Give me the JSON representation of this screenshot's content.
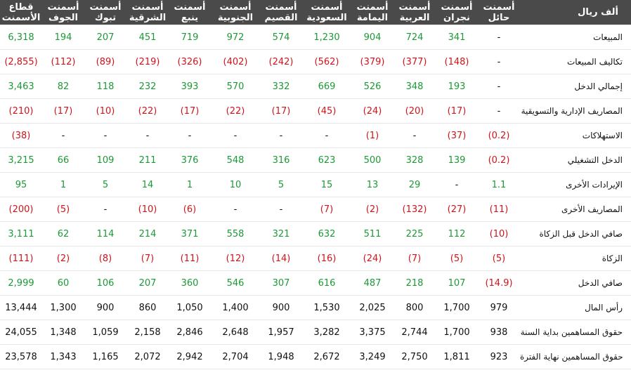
{
  "table": {
    "corner_label": "ألف ريال",
    "columns": [
      "قطاع\nالأسمنت",
      "أسمنت\nالجوف",
      "أسمنت\nتبوك",
      "أسمنت\nالشرقية",
      "أسمنت\nينبع",
      "أسمنت\nالجنوبية",
      "أسمنت\nالقصيم",
      "أسمنت\nالسعودية",
      "أسمنت\nاليمامة",
      "أسمنت\nالعربية",
      "أسمنت\nنجران",
      "أسمنت\nحائل"
    ],
    "rows": [
      {
        "label": "المبيعات",
        "values": [
          "6,318",
          "194",
          "207",
          "451",
          "719",
          "972",
          "574",
          "1,230",
          "904",
          "724",
          "341",
          "-"
        ],
        "tone": [
          "pos",
          "pos",
          "pos",
          "pos",
          "pos",
          "pos",
          "pos",
          "pos",
          "pos",
          "pos",
          "pos",
          "neu"
        ]
      },
      {
        "label": "تكاليف المبيعات",
        "values": [
          "(2,855)",
          "(112)",
          "(89)",
          "(219)",
          "(326)",
          "(402)",
          "(242)",
          "(562)",
          "(379)",
          "(377)",
          "(148)",
          "-"
        ],
        "tone": [
          "neg",
          "neg",
          "neg",
          "neg",
          "neg",
          "neg",
          "neg",
          "neg",
          "neg",
          "neg",
          "neg",
          "neu"
        ]
      },
      {
        "label": "إجمالي الدخل",
        "values": [
          "3,463",
          "82",
          "118",
          "232",
          "393",
          "570",
          "332",
          "669",
          "526",
          "348",
          "193",
          "-"
        ],
        "tone": [
          "pos",
          "pos",
          "pos",
          "pos",
          "pos",
          "pos",
          "pos",
          "pos",
          "pos",
          "pos",
          "pos",
          "neu"
        ]
      },
      {
        "label": "المصاريف الإدارية والتسويقية",
        "values": [
          "(210)",
          "(17)",
          "(10)",
          "(22)",
          "(17)",
          "(22)",
          "(17)",
          "(45)",
          "(24)",
          "(20)",
          "(17)",
          "-"
        ],
        "tone": [
          "neg",
          "neg",
          "neg",
          "neg",
          "neg",
          "neg",
          "neg",
          "neg",
          "neg",
          "neg",
          "neg",
          "neu"
        ]
      },
      {
        "label": "الاستهلاكات",
        "values": [
          "(38)",
          "-",
          "-",
          "-",
          "-",
          "-",
          "-",
          "-",
          "(1)",
          "-",
          "(37)",
          "(0.2)"
        ],
        "tone": [
          "neg",
          "neu",
          "neu",
          "neu",
          "neu",
          "neu",
          "neu",
          "neu",
          "neg",
          "neu",
          "neg",
          "neg"
        ]
      },
      {
        "label": "الدخل التشغيلي",
        "values": [
          "3,215",
          "66",
          "109",
          "211",
          "376",
          "548",
          "316",
          "623",
          "500",
          "328",
          "139",
          "(0.2)"
        ],
        "tone": [
          "pos",
          "pos",
          "pos",
          "pos",
          "pos",
          "pos",
          "pos",
          "pos",
          "pos",
          "pos",
          "pos",
          "neg"
        ]
      },
      {
        "label": "الإيرادات الأخرى",
        "values": [
          "95",
          "1",
          "5",
          "14",
          "1",
          "10",
          "5",
          "15",
          "13",
          "29",
          "-",
          "1.1"
        ],
        "tone": [
          "pos",
          "pos",
          "pos",
          "pos",
          "pos",
          "pos",
          "pos",
          "pos",
          "pos",
          "pos",
          "neu",
          "pos"
        ]
      },
      {
        "label": "المصاريف الأخرى",
        "values": [
          "(200)",
          "(5)",
          "-",
          "(10)",
          "(6)",
          "-",
          "-",
          "(7)",
          "(2)",
          "(132)",
          "(27)",
          "(11)"
        ],
        "tone": [
          "neg",
          "neg",
          "neu",
          "neg",
          "neg",
          "neu",
          "neu",
          "neg",
          "neg",
          "neg",
          "neg",
          "neg"
        ]
      },
      {
        "label": "صافي الدخل قبل الزكاة",
        "values": [
          "3,111",
          "62",
          "114",
          "214",
          "371",
          "558",
          "321",
          "632",
          "511",
          "225",
          "112",
          "(10)"
        ],
        "tone": [
          "pos",
          "pos",
          "pos",
          "pos",
          "pos",
          "pos",
          "pos",
          "pos",
          "pos",
          "pos",
          "pos",
          "neg"
        ]
      },
      {
        "label": "الزكاة",
        "values": [
          "(111)",
          "(2)",
          "(8)",
          "(7)",
          "(11)",
          "(12)",
          "(14)",
          "(16)",
          "(24)",
          "(7)",
          "(5)",
          "(5)"
        ],
        "tone": [
          "neg",
          "neg",
          "neg",
          "neg",
          "neg",
          "neg",
          "neg",
          "neg",
          "neg",
          "neg",
          "neg",
          "neg"
        ]
      },
      {
        "label": "صافي الدخل",
        "values": [
          "2,999",
          "60",
          "106",
          "207",
          "360",
          "546",
          "307",
          "616",
          "487",
          "218",
          "107",
          "(14.9)"
        ],
        "tone": [
          "pos",
          "pos",
          "pos",
          "pos",
          "pos",
          "pos",
          "pos",
          "pos",
          "pos",
          "pos",
          "pos",
          "neg"
        ]
      },
      {
        "label": "رأس المال",
        "values": [
          "13,444",
          "1,300",
          "900",
          "860",
          "1,050",
          "1,400",
          "900",
          "1,530",
          "2,025",
          "800",
          "1,700",
          "979"
        ],
        "tone": [
          "neu",
          "neu",
          "neu",
          "neu",
          "neu",
          "neu",
          "neu",
          "neu",
          "neu",
          "neu",
          "neu",
          "neu"
        ]
      },
      {
        "label": "حقوق المساهمين بداية السنة",
        "values": [
          "24,055",
          "1,348",
          "1,059",
          "2,158",
          "2,846",
          "2,648",
          "1,957",
          "3,282",
          "3,375",
          "2,744",
          "1,700",
          "938"
        ],
        "tone": [
          "neu",
          "neu",
          "neu",
          "neu",
          "neu",
          "neu",
          "neu",
          "neu",
          "neu",
          "neu",
          "neu",
          "neu"
        ]
      },
      {
        "label": "حقوق المساهمين نهاية الفترة",
        "values": [
          "23,578",
          "1,343",
          "1,165",
          "2,072",
          "2,942",
          "2,704",
          "1,948",
          "2,672",
          "3,249",
          "2,750",
          "1,811",
          "923"
        ],
        "tone": [
          "neu",
          "neu",
          "neu",
          "neu",
          "neu",
          "neu",
          "neu",
          "neu",
          "neu",
          "neu",
          "neu",
          "neu"
        ]
      }
    ]
  }
}
